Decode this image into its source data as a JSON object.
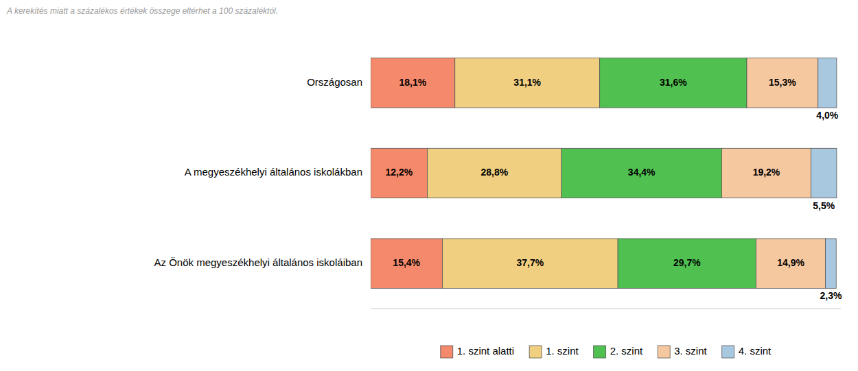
{
  "chart_data": {
    "type": "bar",
    "orientation": "horizontal",
    "stacked": true,
    "data_labels": true,
    "tick_labels": "y",
    "legend": "bottom",
    "grid": false,
    "annotations": [
      "A kerekítés miatt a százalékos értékek összege eltérhet a 100 százaléktól."
    ],
    "categories": [
      "Országosan",
      "A megyeszékhelyi általános iskolákban",
      "Az Önök megyeszékhelyi általános iskoláiban"
    ],
    "xlim": [
      0,
      101
    ],
    "xticks": [],
    "series": [
      {
        "name": "1. szint alatti",
        "color": "#F4896B",
        "values": [
          18.1,
          12.2,
          15.4
        ],
        "value_labels": [
          "18,1%",
          "12,2%",
          "15,4%"
        ]
      },
      {
        "name": "1. szint",
        "color": "#F0D080",
        "values": [
          31.1,
          28.8,
          37.7
        ],
        "value_labels": [
          "31,1%",
          "28,8%",
          "37,7%"
        ]
      },
      {
        "name": "2. szint",
        "color": "#50C050",
        "values": [
          31.6,
          34.4,
          29.7
        ],
        "value_labels": [
          "31,6%",
          "34,4%",
          "29,7%"
        ]
      },
      {
        "name": "3. szint",
        "color": "#F5C8A0",
        "values": [
          15.3,
          19.2,
          14.9
        ],
        "value_labels": [
          "15,3%",
          "19,2%",
          "14,9%"
        ]
      },
      {
        "name": "4. szint",
        "color": "#A8C8E0",
        "values": [
          4.0,
          5.5,
          2.3
        ],
        "value_labels": [
          "4,0%",
          "5,5%",
          "2,3%"
        ]
      }
    ]
  }
}
